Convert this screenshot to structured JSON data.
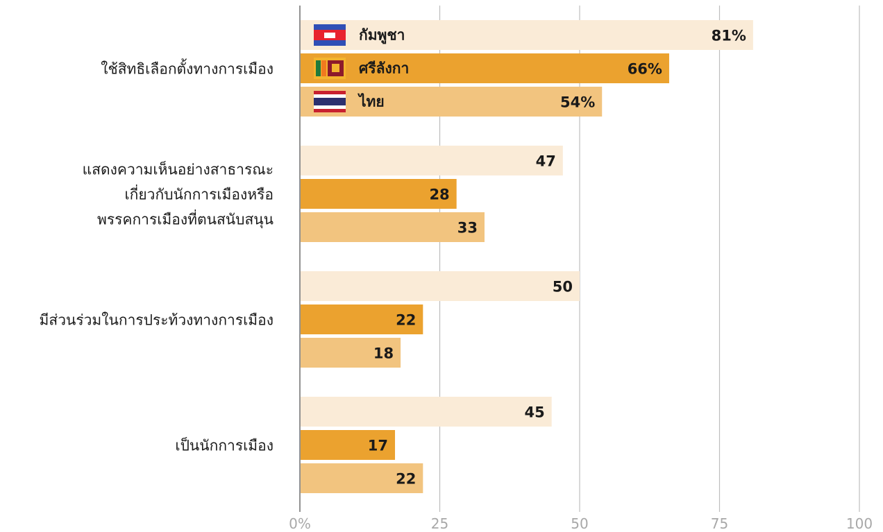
{
  "chart_data": {
    "type": "bar",
    "orientation": "horizontal",
    "categories": [
      [
        "ใช้สิทธิเลือกตั้งทางการเมือง"
      ],
      [
        "แสดงความเห็นอย่างสาธารณะ",
        "เกี่ยวกับนักการเมืองหรือ",
        "พรรคการเมืองที่ตนสนับสนุน"
      ],
      [
        "มีส่วนร่วมในการประท้วงทางการเมือง"
      ],
      [
        "เป็นนักการเมือง"
      ]
    ],
    "series": [
      {
        "name": "กัมพูชา",
        "color": "#faebd7",
        "flag_icon": "cambodia-flag-icon",
        "values": [
          81,
          47,
          50,
          45
        ]
      },
      {
        "name": "ศรีลังกา",
        "color": "#eba22f",
        "flag_icon": "sri-lanka-flag-icon",
        "values": [
          66,
          28,
          22,
          17
        ]
      },
      {
        "name": "ไทย",
        "color": "#f2c47f",
        "flag_icon": "thailand-flag-icon",
        "values": [
          54,
          33,
          18,
          22
        ]
      }
    ],
    "first_row_suffix": "%",
    "xlim": [
      0,
      100
    ],
    "xticks": [
      0,
      25,
      50,
      75,
      100
    ],
    "xtick_labels": [
      "0%",
      "25",
      "50",
      "75",
      "100"
    ],
    "grid": true,
    "legend": "inside-first-bars"
  }
}
